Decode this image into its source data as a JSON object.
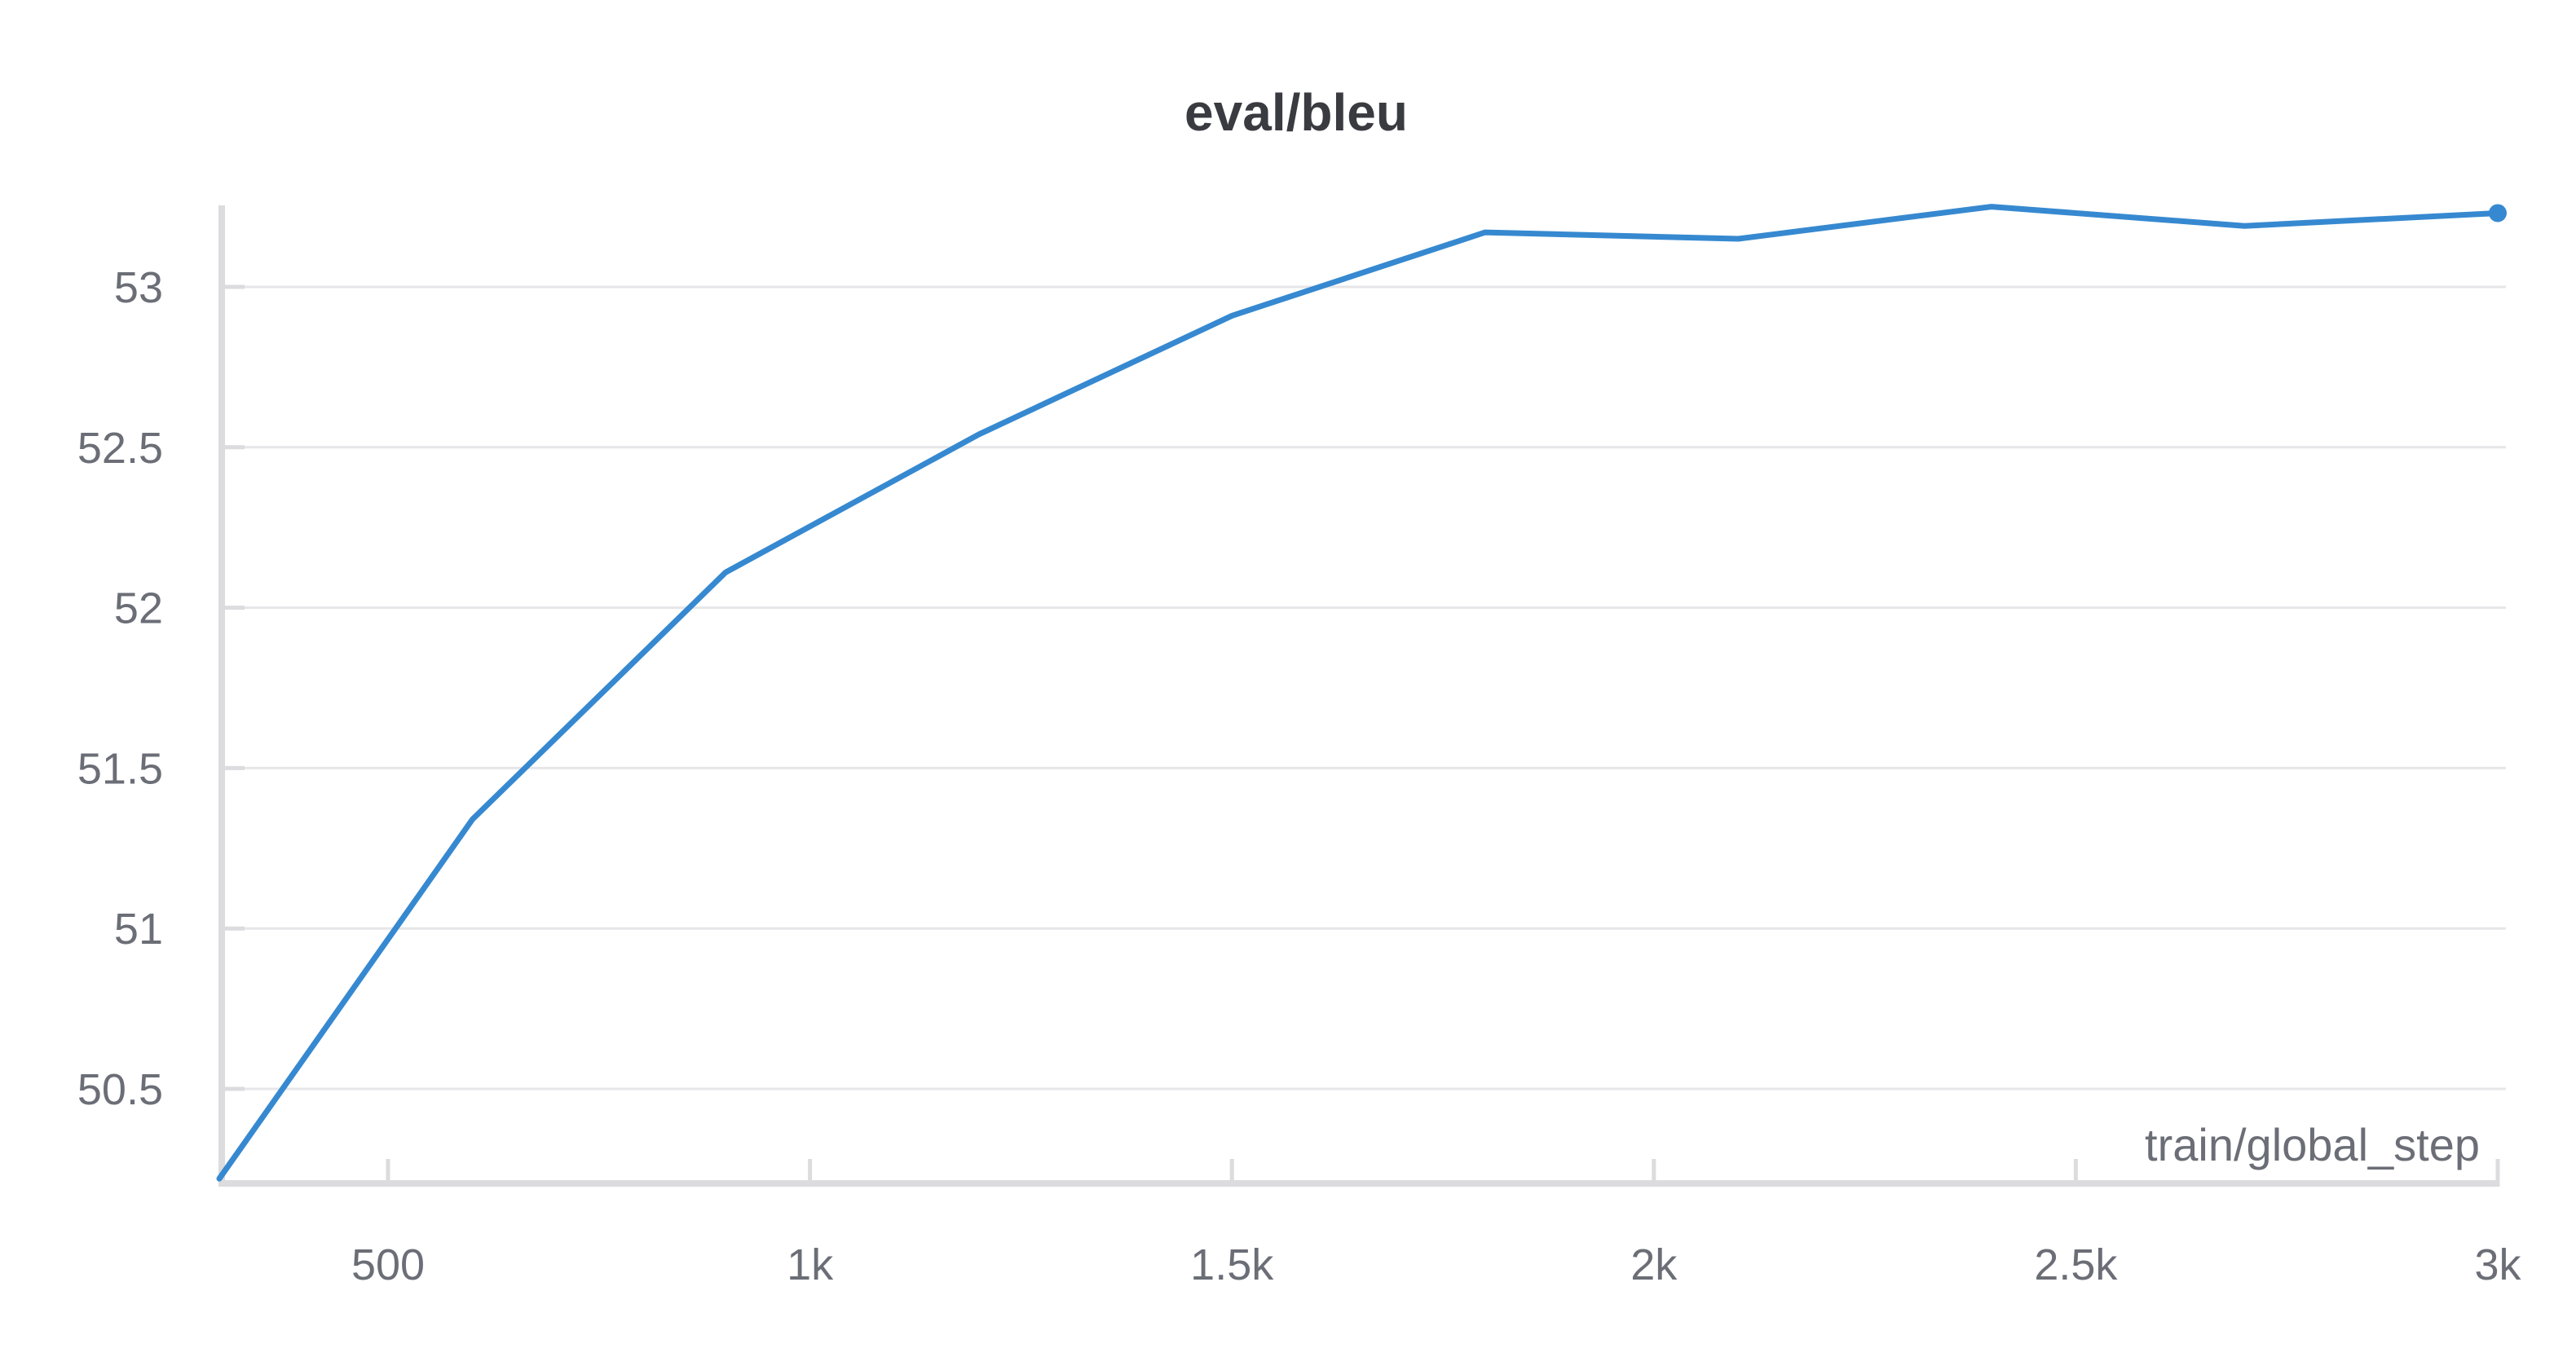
{
  "chart_data": {
    "type": "line",
    "title": "eval/bleu",
    "xlabel": "train/global_step",
    "ylabel": "",
    "xlim": [
      300,
      3000
    ],
    "ylim": [
      50.2,
      53.28
    ],
    "xticks": [
      {
        "value": 500,
        "label": "500"
      },
      {
        "value": 1000,
        "label": "1k"
      },
      {
        "value": 1500,
        "label": "1.5k"
      },
      {
        "value": 2000,
        "label": "2k"
      },
      {
        "value": 2500,
        "label": "2.5k"
      },
      {
        "value": 3000,
        "label": "3k"
      }
    ],
    "yticks": [
      {
        "value": 50.5,
        "label": "50.5"
      },
      {
        "value": 51,
        "label": "51"
      },
      {
        "value": 51.5,
        "label": "51.5"
      },
      {
        "value": 52,
        "label": "52"
      },
      {
        "value": 52.5,
        "label": "52.5"
      },
      {
        "value": 53,
        "label": "53"
      }
    ],
    "grid": true,
    "legend": "none",
    "series": [
      {
        "color": "#3689d0",
        "x": [
          300,
          600,
          900,
          1200,
          1500,
          1800,
          2100,
          2400,
          2700,
          3000
        ],
        "y": [
          50.22,
          51.34,
          52.11,
          52.54,
          52.91,
          53.17,
          53.15,
          53.25,
          53.19,
          53.23
        ]
      }
    ]
  }
}
